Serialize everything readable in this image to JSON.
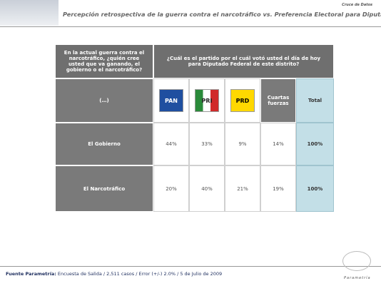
{
  "header": {
    "tag": "Cruce de Datos",
    "title": "Percepción retrospectiva de la guerra contra el narcotráfico vs. Preferencia Electoral para Diputado Federal"
  },
  "table": {
    "question_left": "En la actual guerra contra el narcotráfico, ¿quién cree usted que va ganando, el gobierno o el narcotráfico?",
    "question_right": "¿Cuál es el partido por el cuál votó usted el día de hoy para Diputado Federal de este distrito?",
    "columns": [
      "(…)",
      "PAN",
      "PRI",
      "PRD",
      "Cuartas fuerzas",
      "Total"
    ],
    "rows": [
      [
        "El Gobierno",
        "44%",
        "33%",
        "9%",
        "14%",
        "100%"
      ],
      [
        "El Narcotráfico",
        "20%",
        "40%",
        "21%",
        "19%",
        "100%"
      ]
    ]
  },
  "footer": {
    "source_label": "Fuente Parametría:",
    "source": "Encuesta de Salida / 2,511 casos / Error (+/-) 2.0% / 5 de Julio de 2009",
    "brand": "Parametría"
  }
}
